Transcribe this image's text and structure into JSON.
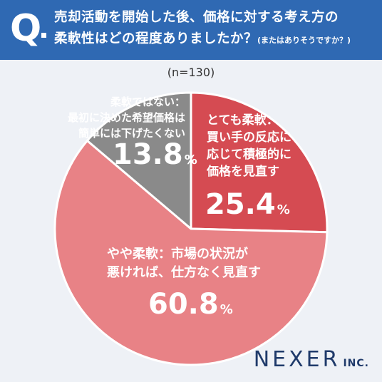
{
  "header": {
    "q": "Q",
    "line1": "売却活動を開始した後、価格に対する考え方の",
    "line2": "柔軟性はどの程度ありましたか？",
    "line2_sub": "(またはありそうですか？)"
  },
  "chart_data": {
    "type": "pie",
    "n_label": "(n=130)",
    "slices": [
      {
        "lines": [
          "とても柔軟：",
          "買い手の反応に",
          "応じて積極的に",
          "価格を見直す"
        ],
        "value": 25.4,
        "value_text": "25.4",
        "color": "#d54b52"
      },
      {
        "lines": [
          "やや柔軟：市場の状況が",
          "悪ければ、仕方なく見直す"
        ],
        "value": 60.8,
        "value_text": "60.8",
        "color": "#e88286"
      },
      {
        "lines": [
          "柔軟ではない：",
          "最初に決めた希望価格は",
          "簡単には下げたくない"
        ],
        "value": 13.8,
        "value_text": "13.8",
        "color": "#8a8a8a"
      }
    ],
    "pct_symbol": "%"
  },
  "brand": {
    "name": "NEXER",
    "suffix": "INC."
  }
}
